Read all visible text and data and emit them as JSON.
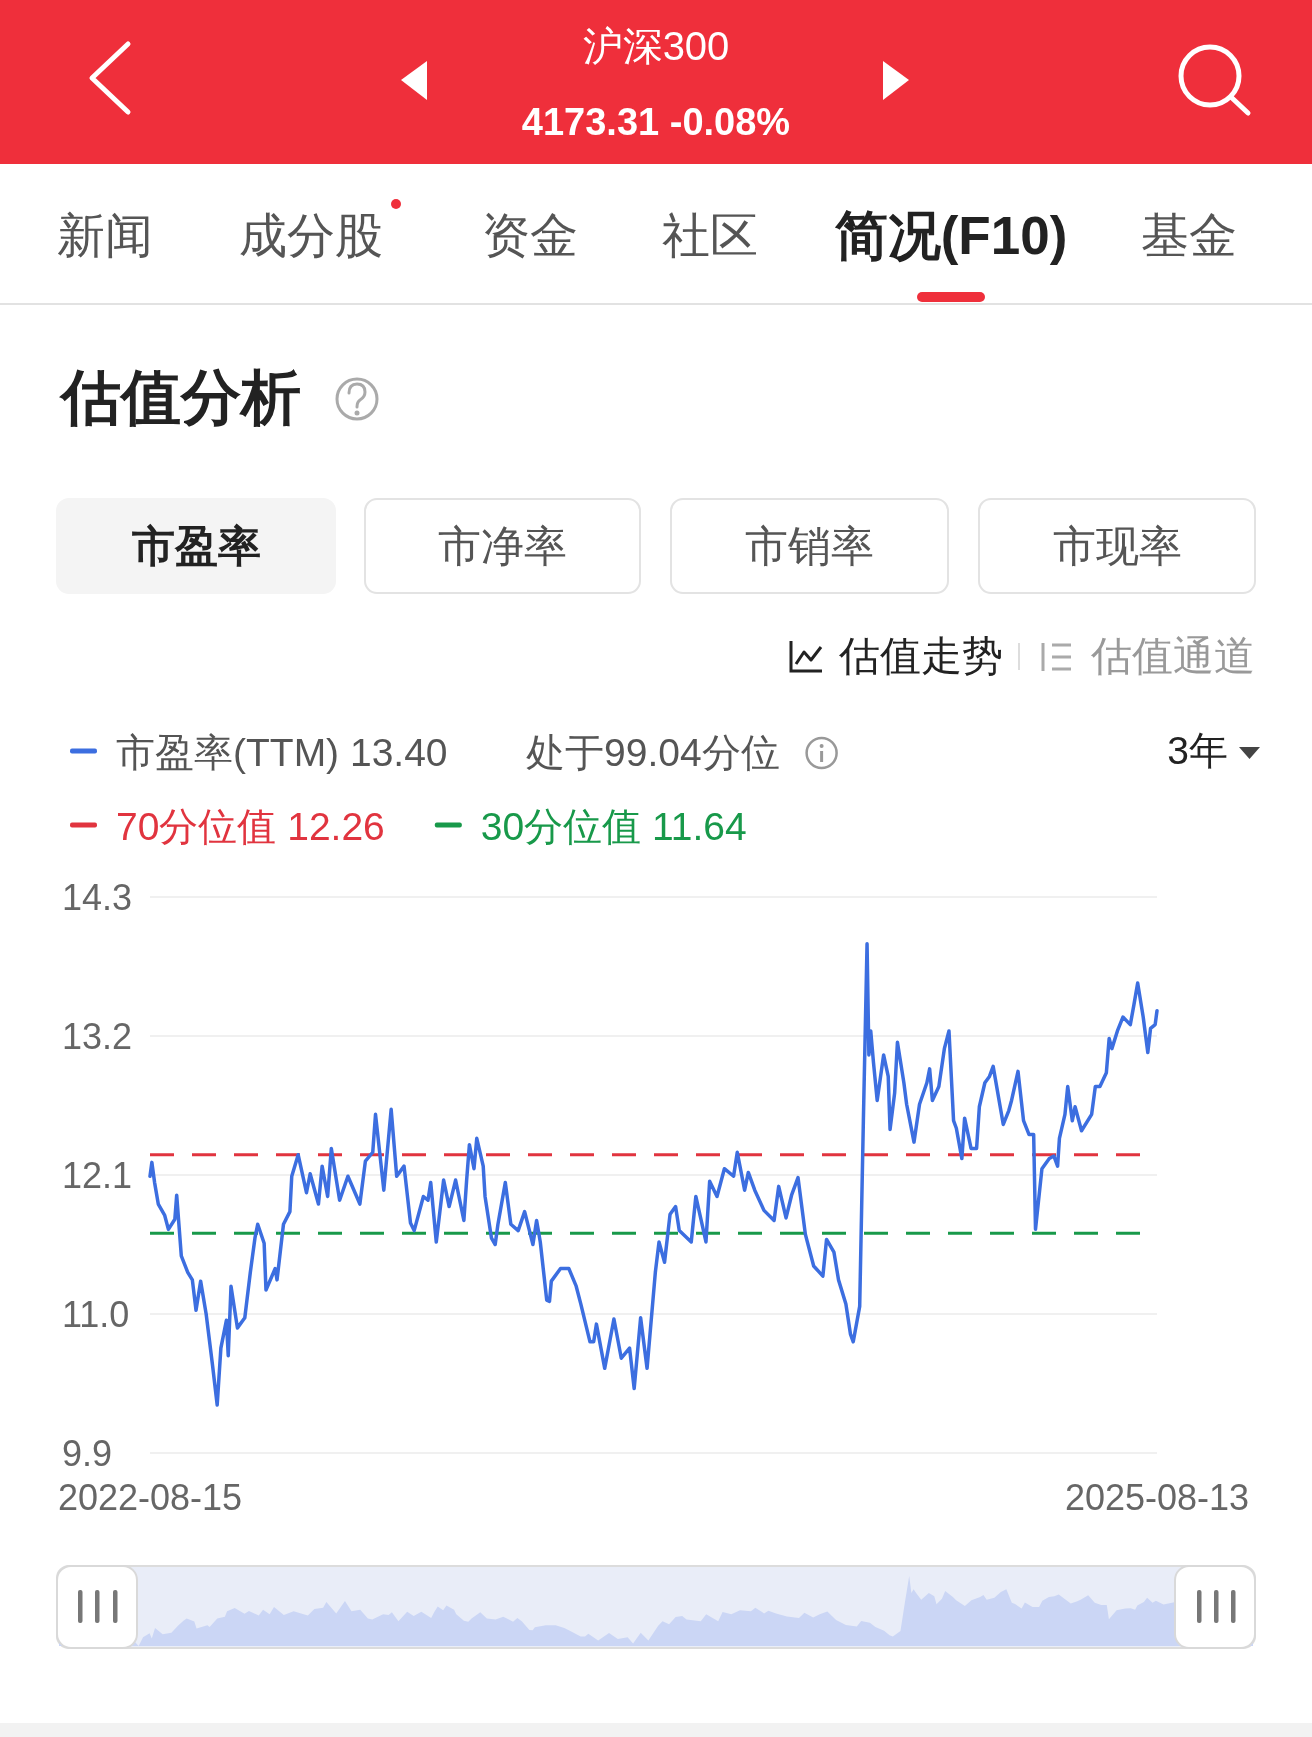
{
  "chart_data": {
    "type": "line",
    "title": "估值分析",
    "annotations": [
      "沪深300",
      "4173.31 -0.08%",
      "新闻",
      "成分股",
      "资金",
      "社区",
      "简况(F10)",
      "基金",
      "市盈率",
      "市净率",
      "市销率",
      "市现率",
      "估值走势",
      "估值通道",
      "处于99.04分位",
      "3年"
    ],
    "x": [
      "2022-08-15",
      "2022-08-17",
      "2022-08-20",
      "2022-08-24",
      "2022-08-31",
      "2022-09-04",
      "2022-09-11",
      "2022-09-13",
      "2022-09-18",
      "2022-09-25",
      "2022-09-30",
      "2022-10-04",
      "2022-10-09",
      "2022-10-15",
      "2022-10-22",
      "2022-10-27",
      "2022-10-31",
      "2022-11-06",
      "2022-11-08",
      "2022-11-11",
      "2022-11-18",
      "2022-11-26",
      "2022-12-02",
      "2022-12-07",
      "2022-12-10",
      "2022-12-17",
      "2022-12-19",
      "2022-12-29",
      "2022-12-31",
      "2023-01-07",
      "2023-01-14",
      "2023-01-16",
      "2023-01-23",
      "2023-02-01",
      "2023-02-05",
      "2023-02-14",
      "2023-02-18",
      "2023-02-24",
      "2023-02-28",
      "2023-03-09",
      "2023-03-18",
      "2023-03-31",
      "2023-04-06",
      "2023-04-14",
      "2023-04-17",
      "2023-04-26",
      "2023-05-04",
      "2023-05-10",
      "2023-05-18",
      "2023-05-25",
      "2023-05-29",
      "2023-06-08",
      "2023-06-13",
      "2023-06-16",
      "2023-06-22",
      "2023-06-30",
      "2023-07-06",
      "2023-07-13",
      "2023-07-22",
      "2023-07-25",
      "2023-07-28",
      "2023-08-02",
      "2023-08-05",
      "2023-08-12",
      "2023-08-14",
      "2023-08-21",
      "2023-08-25",
      "2023-08-28",
      "2023-09-05",
      "2023-09-11",
      "2023-09-19",
      "2023-09-26",
      "2023-10-05",
      "2023-10-09",
      "2023-10-13",
      "2023-10-20",
      "2023-10-23",
      "2023-10-25",
      "2023-11-04",
      "2023-11-13",
      "2023-11-21",
      "2023-11-26",
      "2023-12-06",
      "2023-12-10",
      "2023-12-13",
      "2023-12-22",
      "2024-01-01",
      "2024-01-09",
      "2024-01-18",
      "2024-01-23",
      "2024-01-30",
      "2024-02-06",
      "2024-02-15",
      "2024-02-19",
      "2024-02-25",
      "2024-03-02",
      "2024-03-08",
      "2024-03-12",
      "2024-03-25",
      "2024-03-30",
      "2024-04-10",
      "2024-04-14",
      "2024-04-22",
      "2024-04-30",
      "2024-05-10",
      "2024-05-14",
      "2024-05-22",
      "2024-05-26",
      "2024-06-02",
      "2024-06-12",
      "2024-06-23",
      "2024-06-28",
      "2024-07-06",
      "2024-07-12",
      "2024-07-19",
      "2024-07-27",
      "2024-08-05",
      "2024-08-15",
      "2024-08-19",
      "2024-08-27",
      "2024-09-01",
      "2024-09-09",
      "2024-09-14",
      "2024-09-17",
      "2024-09-24",
      "2024-09-28",
      "2024-10-02",
      "2024-10-04",
      "2024-10-06",
      "2024-10-09",
      "2024-10-13",
      "2024-10-20",
      "2024-10-25",
      "2024-10-27",
      "2024-11-01",
      "2024-11-04",
      "2024-11-11",
      "2024-11-14",
      "2024-11-22",
      "2024-11-28",
      "2024-12-06",
      "2024-12-09",
      "2024-12-12",
      "2024-12-19",
      "2024-12-25",
      "2024-12-30",
      "2025-01-04",
      "2025-01-07",
      "2025-01-13",
      "2025-01-16",
      "2025-01-23",
      "2025-01-29",
      "2025-02-01",
      "2025-02-07",
      "2025-02-12",
      "2025-02-16",
      "2025-02-27",
      "2025-03-05",
      "2025-03-08",
      "2025-03-15",
      "2025-03-21",
      "2025-03-27",
      "2025-04-01",
      "2025-04-03",
      "2025-04-10",
      "2025-04-18",
      "2025-04-23",
      "2025-04-27",
      "2025-04-29",
      "2025-05-05",
      "2025-05-08",
      "2025-05-13",
      "2025-05-16",
      "2025-05-23",
      "2025-06-03",
      "2025-06-07",
      "2025-06-12",
      "2025-06-19",
      "2025-06-22",
      "2025-06-25",
      "2025-07-01",
      "2025-07-07",
      "2025-07-15",
      "2025-07-19",
      "2025-07-23",
      "2025-07-29",
      "2025-08-03",
      "2025-08-06",
      "2025-08-11",
      "2025-08-13"
    ],
    "series": [
      {
        "name": "市盈率(TTM) 13.40",
        "color": "#3c6ee0",
        "values": [
          12.09,
          12.2,
          12.04,
          11.87,
          11.78,
          11.67,
          11.75,
          11.94,
          11.46,
          11.33,
          11.27,
          11.03,
          11.26,
          11.0,
          10.59,
          10.28,
          10.73,
          10.95,
          10.67,
          11.22,
          10.89,
          10.97,
          11.33,
          11.6,
          11.71,
          11.56,
          11.19,
          11.36,
          11.27,
          11.71,
          11.81,
          12.09,
          12.26,
          11.96,
          12.11,
          11.87,
          12.17,
          11.93,
          12.31,
          11.9,
          12.09,
          11.87,
          12.21,
          12.28,
          12.58,
          11.98,
          12.62,
          12.09,
          12.17,
          11.72,
          11.66,
          11.93,
          11.9,
          12.04,
          11.57,
          12.06,
          11.85,
          12.06,
          11.74,
          12.06,
          12.34,
          12.15,
          12.39,
          12.17,
          11.93,
          11.6,
          11.55,
          11.71,
          12.04,
          11.71,
          11.66,
          11.81,
          11.55,
          11.74,
          11.57,
          11.11,
          11.1,
          11.26,
          11.36,
          11.36,
          11.22,
          11.08,
          10.78,
          10.78,
          10.92,
          10.57,
          10.96,
          10.65,
          10.73,
          10.41,
          10.97,
          10.57,
          11.33,
          11.57,
          11.41,
          11.79,
          11.85,
          11.66,
          11.57,
          11.93,
          11.57,
          12.05,
          11.93,
          12.15,
          12.09,
          12.28,
          11.98,
          12.12,
          11.98,
          11.82,
          11.74,
          12.01,
          11.76,
          11.94,
          12.08,
          11.63,
          11.38,
          11.3,
          11.59,
          11.49,
          11.27,
          11.08,
          10.84,
          10.78,
          11.06,
          12.53,
          13.93,
          13.05,
          13.24,
          12.99,
          12.69,
          13.05,
          12.88,
          12.46,
          12.75,
          13.15,
          12.83,
          12.66,
          12.36,
          12.66,
          12.83,
          12.94,
          12.69,
          12.8,
          13.1,
          13.24,
          12.53,
          12.47,
          12.23,
          12.55,
          12.31,
          12.31,
          12.64,
          12.83,
          12.88,
          12.96,
          12.5,
          12.61,
          12.69,
          12.92,
          12.53,
          12.42,
          12.42,
          11.67,
          12.15,
          12.23,
          12.25,
          12.17,
          12.39,
          12.58,
          12.8,
          12.53,
          12.64,
          12.45,
          12.58,
          12.8,
          12.8,
          12.91,
          13.18,
          13.1,
          13.24,
          13.35,
          13.29,
          13.45,
          13.62,
          13.35,
          13.07,
          13.26,
          13.29,
          13.4
        ]
      }
    ],
    "xlim": [
      "2022-08-15",
      "2025-08-13"
    ],
    "xticks": [
      "2022-08-15",
      "2025-08-13"
    ],
    "ylim": [
      9.9,
      14.3
    ],
    "yticks": [
      9.9,
      {
        "value": 11,
        "label": "11.0"
      },
      12.1,
      13.2,
      14.3
    ],
    "ref_lines": [
      {
        "axis": "y",
        "value": 12.26,
        "label": "70分位值 12.26",
        "color": "#e1343f",
        "line_style": "dashed"
      },
      {
        "axis": "y",
        "value": 11.64,
        "label": "30分位值 11.64",
        "color": "#18994a",
        "line_style": "dashed"
      }
    ],
    "grid": "y",
    "legend": "top left"
  }
}
